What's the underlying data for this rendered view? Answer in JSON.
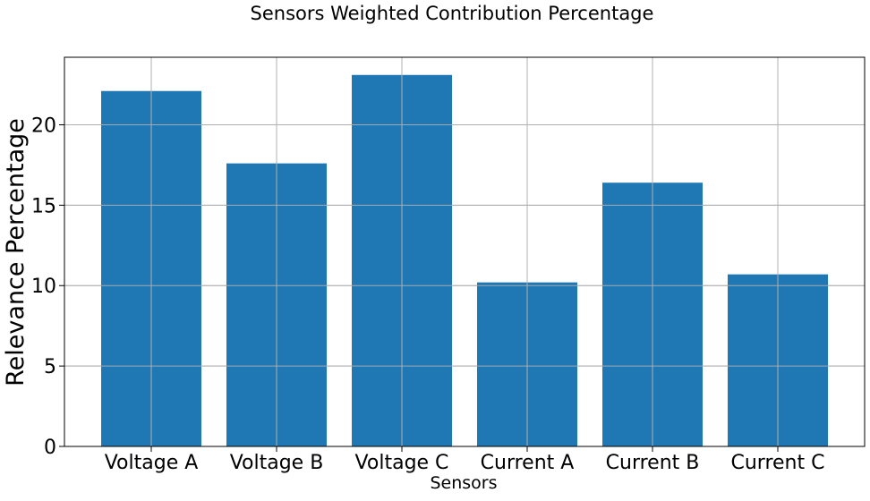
{
  "chart_data": {
    "type": "bar",
    "title": "Sensors Weighted Contribution Percentage",
    "xlabel": "Sensors",
    "ylabel": "Relevance Percentage",
    "categories": [
      "Voltage A",
      "Voltage B",
      "Voltage C",
      "Current A",
      "Current B",
      "Current C"
    ],
    "values": [
      22.1,
      17.6,
      23.1,
      10.2,
      16.4,
      10.7
    ],
    "ylim": [
      0,
      24.2
    ],
    "yticks": [
      0,
      5,
      10,
      15,
      20
    ],
    "ytick_labels": [
      "0",
      "5",
      "10",
      "15",
      "20"
    ],
    "grid": true,
    "bar_color": "#1f77b4"
  }
}
